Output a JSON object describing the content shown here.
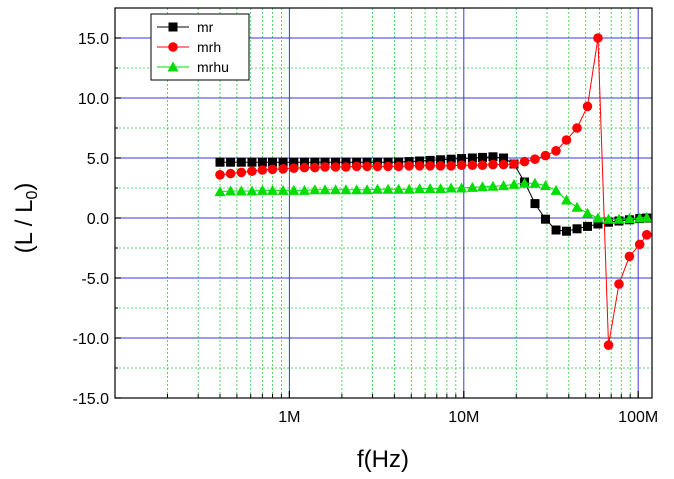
{
  "chart_data": {
    "type": "line",
    "x_scale": "log",
    "xlabel": "f(Hz)",
    "ylabel_main": "(L / L",
    "ylabel_sub": "0",
    "ylabel_end": ")",
    "xlim": [
      100000,
      120000000
    ],
    "ylim": [
      -15,
      17.5
    ],
    "x_ticks": [
      1000000,
      10000000,
      100000000
    ],
    "x_tick_labels": [
      "1M",
      "10M",
      "100M"
    ],
    "y_ticks": [
      -15,
      -10,
      -5,
      0,
      5,
      10,
      15
    ],
    "y_tick_labels": [
      "-15.0",
      "-10.0",
      "-5.0",
      "0.0",
      "5.0",
      "10.0",
      "15.0"
    ],
    "grid": {
      "major": true,
      "minor": true,
      "major_color": "#3a3ad6",
      "minor_color": "#2ecc40"
    },
    "legend_position": "top-left",
    "x": [
      400000,
      460000,
      530000,
      610000,
      700000,
      800000,
      920000,
      1060000,
      1220000,
      1400000,
      1600000,
      1840000,
      2110000,
      2430000,
      2790000,
      3200000,
      3680000,
      4230000,
      4860000,
      5580000,
      6410000,
      7360000,
      8460000,
      9710000,
      11200000,
      12800000,
      14700000,
      16900000,
      19400000,
      22300000,
      25600000,
      29400000,
      33800000,
      38800000,
      44600000,
      51200000,
      58800000,
      67600000,
      77600000,
      89100000,
      102000000,
      112000000
    ],
    "series": [
      {
        "name": "mr",
        "color": "#000000",
        "marker": "square",
        "values": [
          4.65,
          4.65,
          4.65,
          4.65,
          4.65,
          4.65,
          4.65,
          4.65,
          4.65,
          4.65,
          4.65,
          4.65,
          4.65,
          4.65,
          4.65,
          4.65,
          4.65,
          4.67,
          4.7,
          4.75,
          4.8,
          4.85,
          4.9,
          4.95,
          5.0,
          5.05,
          5.1,
          5.0,
          4.5,
          3.0,
          1.2,
          -0.1,
          -1.0,
          -1.1,
          -0.9,
          -0.7,
          -0.5,
          -0.35,
          -0.25,
          -0.15,
          -0.05,
          0.0
        ]
      },
      {
        "name": "mrh",
        "color": "#ff0000",
        "marker": "circle",
        "values": [
          3.6,
          3.7,
          3.8,
          3.9,
          4.0,
          4.05,
          4.1,
          4.15,
          4.2,
          4.2,
          4.25,
          4.25,
          4.25,
          4.3,
          4.3,
          4.3,
          4.3,
          4.3,
          4.35,
          4.35,
          4.35,
          4.35,
          4.35,
          4.4,
          4.4,
          4.4,
          4.45,
          4.45,
          4.5,
          4.7,
          4.9,
          5.2,
          5.6,
          6.5,
          7.5,
          9.3,
          15.0,
          -10.6,
          -5.5,
          -3.2,
          -2.2,
          -1.4
        ]
      },
      {
        "name": "mrhu",
        "color": "#00dd00",
        "marker": "triangle",
        "values": [
          2.2,
          2.25,
          2.25,
          2.25,
          2.3,
          2.3,
          2.3,
          2.3,
          2.3,
          2.35,
          2.35,
          2.35,
          2.35,
          2.35,
          2.35,
          2.4,
          2.4,
          2.4,
          2.4,
          2.45,
          2.45,
          2.45,
          2.5,
          2.5,
          2.55,
          2.6,
          2.65,
          2.7,
          2.8,
          2.9,
          2.9,
          2.7,
          2.3,
          1.5,
          0.9,
          0.4,
          0.0,
          -0.1,
          -0.1,
          -0.05,
          0.0,
          0.05
        ]
      }
    ]
  }
}
